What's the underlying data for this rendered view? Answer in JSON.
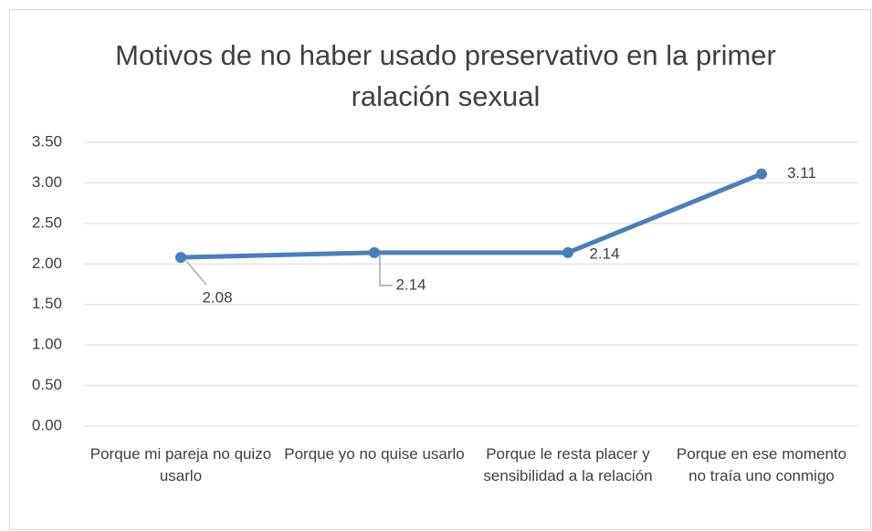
{
  "chart_data": {
    "type": "line",
    "title": "Motivos de no haber usado preservativo en la primer ralación sexual",
    "categories": [
      "Porque mi pareja no quizo usarlo",
      "Porque yo no quise usarlo",
      "Porque le resta placer y sensibilidad a la relación",
      "Porque en ese momento no traía uno conmigo"
    ],
    "values": [
      2.08,
      2.14,
      2.14,
      3.11
    ],
    "color": "#4a7ebb",
    "ylim": [
      0,
      3.5
    ],
    "yticks": [
      {
        "value": 0,
        "label": "0.00"
      },
      {
        "value": 0.5,
        "label": "0.50"
      },
      {
        "value": 1,
        "label": "1.00"
      },
      {
        "value": 1.5,
        "label": "1.50"
      },
      {
        "value": 2,
        "label": "2.00"
      },
      {
        "value": 2.5,
        "label": "2.50"
      },
      {
        "value": 3,
        "label": "3.00"
      },
      {
        "value": 3.5,
        "label": "3.50"
      }
    ],
    "grid": true
  }
}
